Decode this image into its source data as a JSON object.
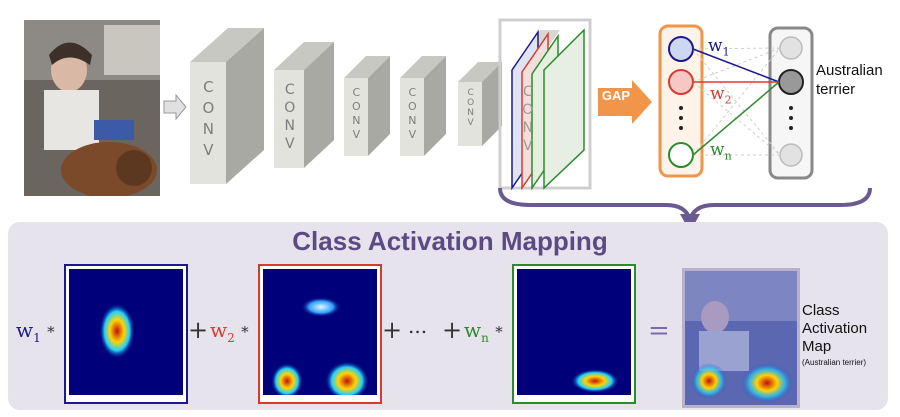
{
  "network": {
    "conv_label": "CONV",
    "gap_label": "GAP",
    "weights": {
      "w1_base": "w",
      "w1_sub": "1",
      "w2_base": "w",
      "w2_sub": "2",
      "wn_base": "w",
      "wn_sub": "n"
    },
    "output_class": "Australian terrier"
  },
  "cam": {
    "title": "Class Activation Mapping",
    "plus": "+",
    "ellipsis": "...",
    "equals": "=",
    "times": "*",
    "result_label": "Class Activation Map",
    "result_sublabel": "(Australian terrier)"
  },
  "colors": {
    "w1": "#1a1a8c",
    "w2": "#d83a2e",
    "wn": "#2b8a2b",
    "gap": "#f0954a",
    "panel": "#e6e3ed",
    "title": "#5b4a84"
  }
}
